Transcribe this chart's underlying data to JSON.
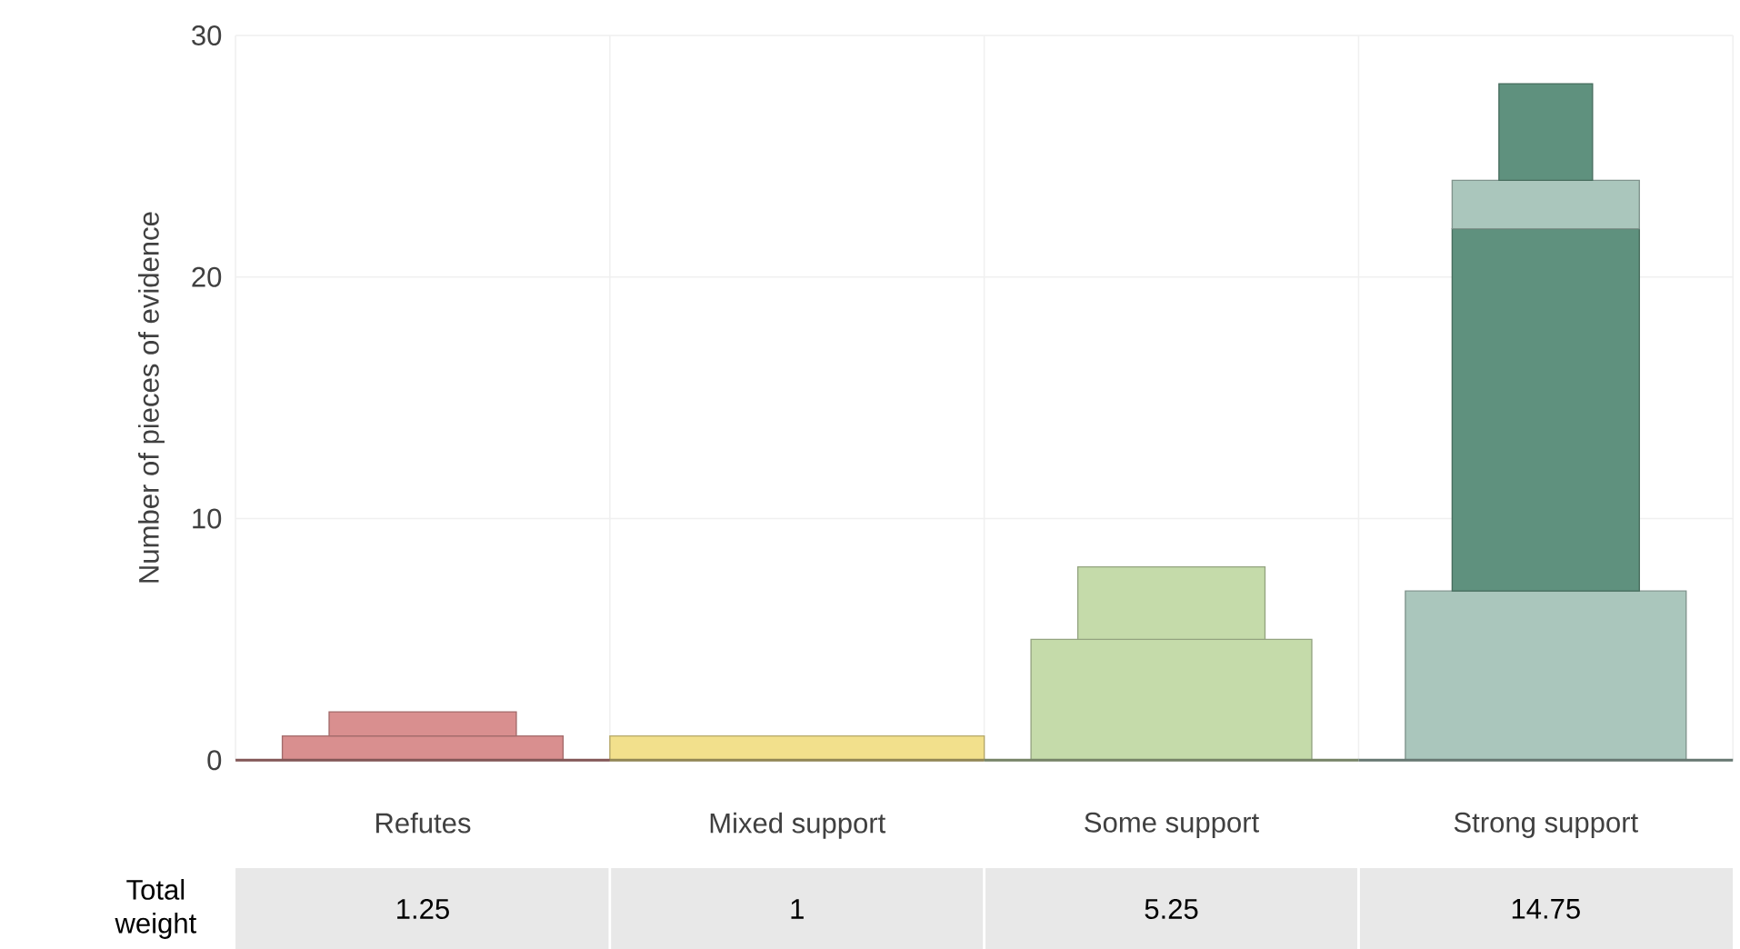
{
  "chart_data": {
    "type": "bar",
    "ylabel": "Number of pieces of evidence",
    "categories": [
      "Refutes",
      "Mixed support",
      "Some support",
      "Strong support"
    ],
    "stacked": true,
    "ylim": [
      0,
      30
    ],
    "yticks": [
      0,
      10,
      20,
      30
    ],
    "grid": true,
    "series": [
      {
        "values": [
          1,
          1,
          5,
          7
        ],
        "colors": [
          "#d98f8f",
          "#f2e08c",
          "#c5dbaa",
          "#aac6bc"
        ]
      },
      {
        "values": [
          1,
          null,
          3,
          15
        ],
        "colors": [
          "#d98f8f",
          null,
          "#c5dbaa",
          "#5f917e"
        ]
      },
      {
        "values": [
          null,
          null,
          null,
          2
        ],
        "colors": [
          null,
          null,
          null,
          "#aac6bc"
        ]
      },
      {
        "values": [
          null,
          null,
          null,
          4
        ],
        "colors": [
          null,
          null,
          null,
          "#5f917e"
        ]
      }
    ],
    "annotations": [
      "Total weight",
      "1.25",
      "1",
      "5.25",
      "14.75"
    ]
  }
}
